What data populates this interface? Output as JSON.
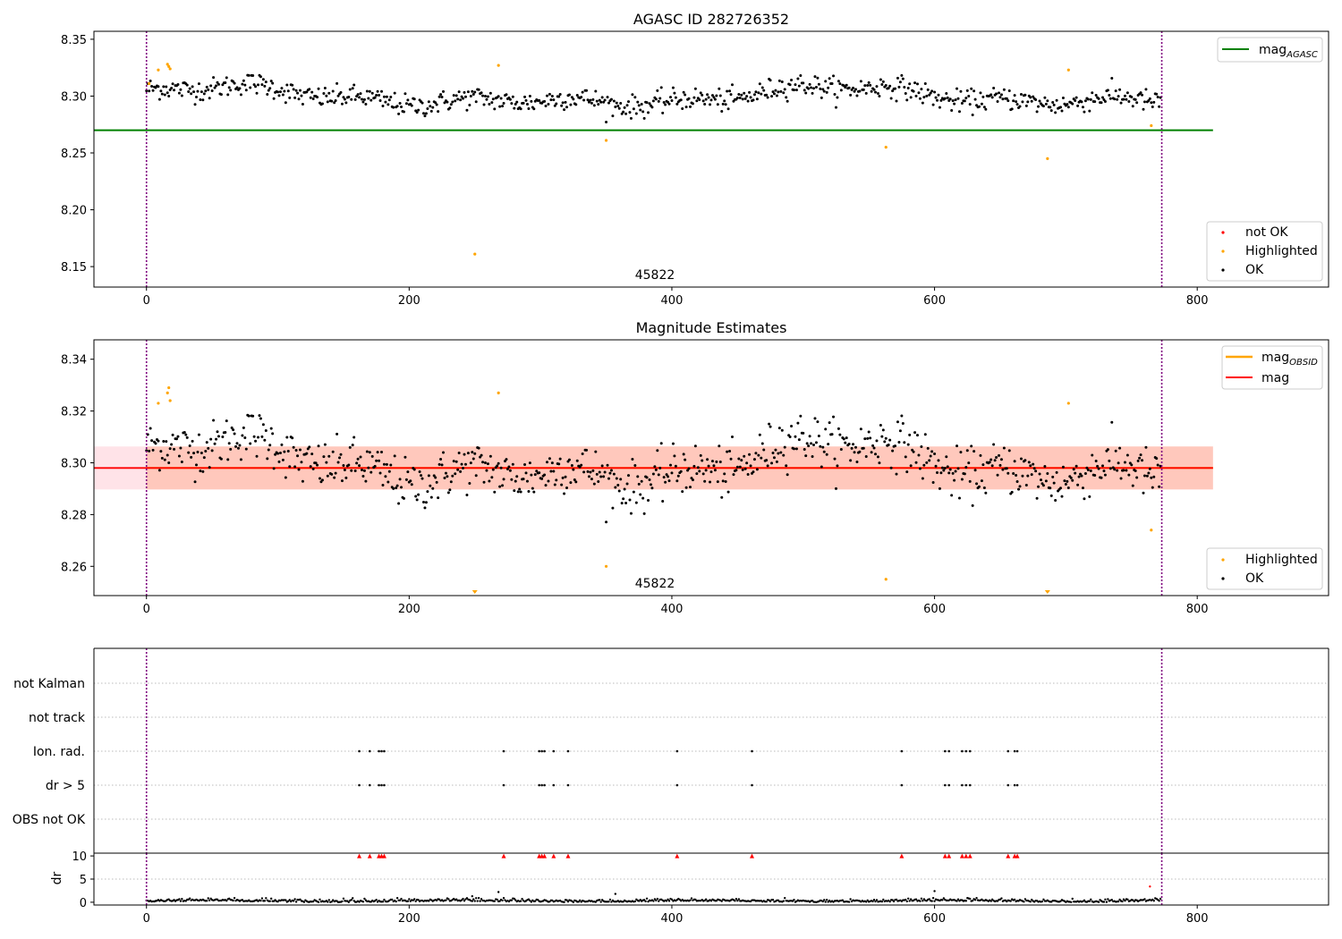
{
  "figure": {
    "panel1_title": "AGASC ID 282726352",
    "panel2_title": "Magnitude Estimates",
    "obsid_label": "45822"
  },
  "colors": {
    "ok": "#000000",
    "highlighted": "#ffa500",
    "not_ok": "#ff0000",
    "mag_agasc": "#008000",
    "mag_obsid": "#ffa500",
    "mag": "#ff0000",
    "band_obsid": "#ffa07a",
    "band_mag": "#ffc0cb",
    "boundary": "#800080",
    "flag_grid": "#bbbbbb"
  },
  "legends": {
    "panel1_line": {
      "main": "mag",
      "sub": "AGASC"
    },
    "panel1_points": [
      "not OK",
      "Highlighted",
      "OK"
    ],
    "panel2_lines": [
      {
        "main": "mag",
        "sub": "OBSID"
      },
      {
        "main": "mag",
        "sub": ""
      }
    ],
    "panel2_points": [
      "Highlighted",
      "OK"
    ]
  },
  "chart_data": [
    {
      "type": "scatter",
      "title": "AGASC ID 282726352",
      "xlabel": "",
      "ylabel": "",
      "xlim": [
        -40,
        900
      ],
      "ylim": [
        8.132,
        8.357
      ],
      "xticks": [
        0,
        200,
        400,
        600,
        800
      ],
      "yticks": [
        8.15,
        8.2,
        8.25,
        8.3,
        8.35
      ],
      "ytick_labels": [
        "8.15",
        "8.20",
        "8.25",
        "8.30",
        "8.35"
      ],
      "legend_placement": [
        "top-right",
        "bottom-right"
      ],
      "grid": false,
      "mag_agasc": 8.27,
      "line_x_range": [
        -40,
        812
      ],
      "observation_boundaries": [
        0,
        773
      ],
      "ok_series": {
        "name": "OK",
        "n": 773,
        "mean": 8.299,
        "x_range": [
          0,
          773
        ]
      },
      "highlighted": [
        [
          2,
          8.311
        ],
        [
          9,
          8.323
        ],
        [
          16,
          8.328
        ],
        [
          17,
          8.326
        ],
        [
          18,
          8.324
        ],
        [
          250,
          8.161
        ],
        [
          268,
          8.327
        ],
        [
          350,
          8.261
        ],
        [
          563,
          8.255
        ],
        [
          686,
          8.245
        ],
        [
          702,
          8.323
        ],
        [
          765,
          8.274
        ]
      ],
      "not_ok": []
    },
    {
      "type": "scatter",
      "title": "Magnitude Estimates",
      "xlabel": "",
      "ylabel": "",
      "xlim": [
        -40,
        900
      ],
      "ylim": [
        8.2487,
        8.3475
      ],
      "xticks": [
        0,
        200,
        400,
        600,
        800
      ],
      "yticks": [
        8.26,
        8.28,
        8.3,
        8.32,
        8.34
      ],
      "ytick_labels": [
        "8.26",
        "8.28",
        "8.30",
        "8.32",
        "8.34"
      ],
      "legend_placement": [
        "top-right",
        "bottom-right"
      ],
      "grid": false,
      "mag_obsid": 8.298,
      "mag_obsid_band": [
        8.2897,
        8.3063
      ],
      "mag": 8.298,
      "mag_band": [
        8.2897,
        8.3063
      ],
      "line_x_range": [
        -40,
        812
      ],
      "obsid_band_x_range": [
        0,
        812
      ],
      "observation_boundaries": [
        0,
        773
      ],
      "highlighted": [
        [
          9,
          8.323
        ],
        [
          16,
          8.327
        ],
        [
          17,
          8.329
        ],
        [
          18,
          8.324
        ],
        [
          268,
          8.327
        ],
        [
          350,
          8.26
        ],
        [
          563,
          8.255
        ],
        [
          702,
          8.323
        ],
        [
          765,
          8.274
        ]
      ],
      "highlighted_below_range": [
        250,
        686
      ]
    },
    {
      "type": "scatter",
      "title": "",
      "ylabel": "",
      "xlim": [
        -40,
        900
      ],
      "categories": [
        "OBS not OK",
        "dr > 5",
        "Ion. rad.",
        "not track",
        "not Kalman"
      ],
      "observation_boundaries": [
        0,
        773
      ],
      "flag_x": {
        "Ion. rad.": [
          162,
          170,
          177,
          179,
          181,
          272,
          299,
          301,
          303,
          310,
          321,
          404,
          461,
          575,
          608,
          611,
          621,
          624,
          627,
          656,
          661,
          663
        ],
        "dr > 5": [
          162,
          170,
          177,
          179,
          181,
          272,
          299,
          301,
          303,
          310,
          321,
          404,
          461,
          575,
          608,
          611,
          621,
          624,
          627,
          656,
          661,
          663
        ],
        "not track": [],
        "not Kalman": [],
        "OBS not OK": []
      }
    },
    {
      "type": "scatter",
      "title": "",
      "xlabel": "",
      "ylabel": "dr",
      "xlim": [
        -40,
        900
      ],
      "ylim": [
        -0.6,
        10.6
      ],
      "xticks": [
        0,
        200,
        400,
        600,
        800
      ],
      "yticks": [
        0,
        5,
        10
      ],
      "observation_boundaries": [
        0,
        773
      ],
      "dr_cap": 10,
      "capped_x": [
        162,
        170,
        177,
        179,
        181,
        272,
        299,
        301,
        303,
        310,
        321,
        404,
        461,
        575,
        608,
        611,
        621,
        624,
        627,
        656,
        661,
        663
      ],
      "outliers": [
        [
          248,
          1.3
        ],
        [
          268,
          2.2
        ],
        [
          357,
          1.8
        ],
        [
          600,
          2.4
        ],
        [
          764,
          3.4
        ]
      ],
      "baseline_range": [
        0.0,
        0.9
      ]
    }
  ]
}
